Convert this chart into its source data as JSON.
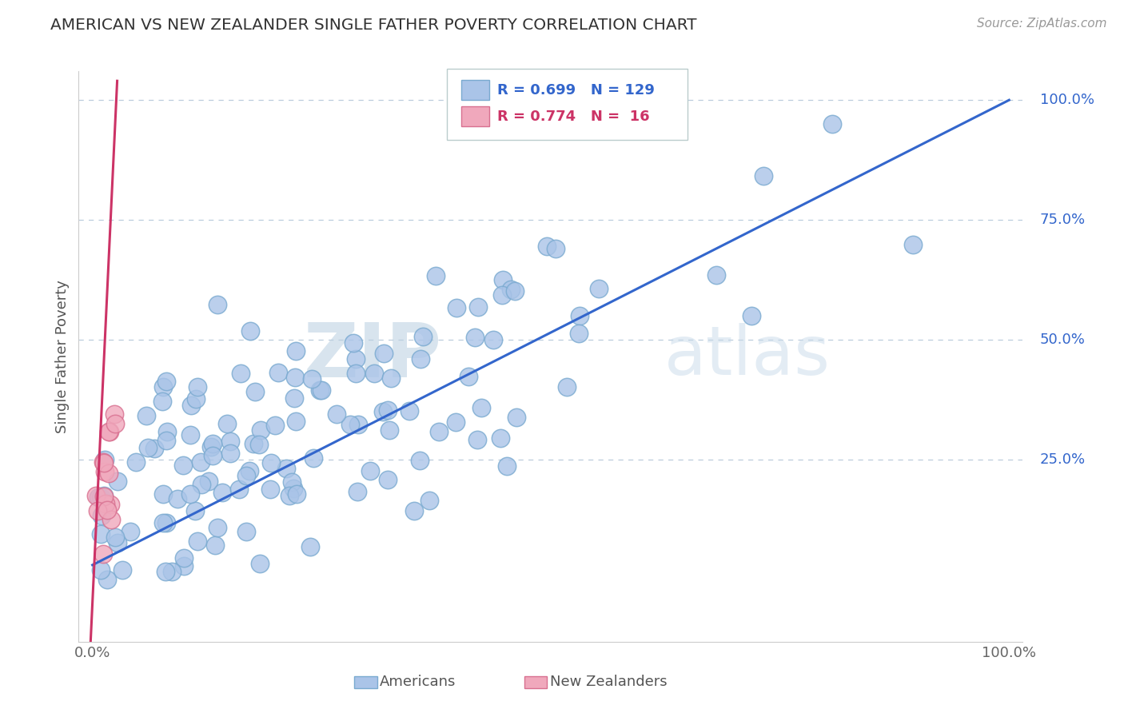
{
  "title": "AMERICAN VS NEW ZEALANDER SINGLE FATHER POVERTY CORRELATION CHART",
  "source": "Source: ZipAtlas.com",
  "ylabel": "Single Father Poverty",
  "ytick_vals": [
    0.25,
    0.5,
    0.75,
    1.0
  ],
  "ytick_labels": [
    "25.0%",
    "50.0%",
    "75.0%",
    "100.0%"
  ],
  "legend_items": [
    {
      "label": "Americans",
      "R": 0.699,
      "N": 129
    },
    {
      "label": "New Zealanders",
      "R": 0.774,
      "N": 16
    }
  ],
  "blue_line_color": "#3366cc",
  "pink_line_color": "#cc3366",
  "blue_dot_facecolor": "#aac4e8",
  "blue_dot_edgecolor": "#7aaad0",
  "pink_dot_facecolor": "#f0a8bc",
  "pink_dot_edgecolor": "#d87090",
  "watermark_color": "#ccddef",
  "background_color": "#ffffff",
  "grid_color": "#bbccdd",
  "legend_R_blue_color": "#3366cc",
  "legend_R_pink_color": "#cc3366",
  "seed": 7
}
